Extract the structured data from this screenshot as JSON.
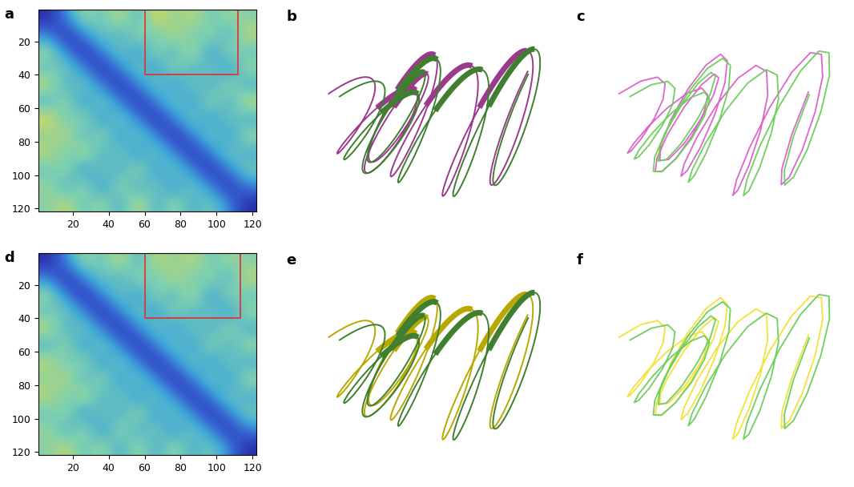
{
  "chart_data": [
    {
      "type": "heatmap",
      "title": "a",
      "xlim": [
        1,
        122
      ],
      "ylim": [
        122,
        1
      ],
      "xticks": [
        20,
        40,
        60,
        80,
        100,
        120
      ],
      "yticks": [
        20,
        40,
        60,
        80,
        100,
        120
      ],
      "clim": [
        0,
        10
      ],
      "highlight": {
        "x": [
          60,
          112
        ],
        "y": [
          1,
          40
        ],
        "color": "#e03030"
      },
      "cells": [
        [
          0,
          3,
          7,
          5,
          8,
          4,
          9,
          6,
          8,
          5,
          7,
          6
        ],
        [
          3,
          0,
          3,
          6,
          4,
          7,
          5,
          8,
          5,
          7,
          4,
          8
        ],
        [
          7,
          3,
          0,
          3,
          6,
          3,
          7,
          4,
          8,
          3,
          7,
          5
        ],
        [
          5,
          6,
          3,
          0,
          3,
          6,
          3,
          7,
          4,
          6,
          3,
          7
        ],
        [
          8,
          4,
          6,
          3,
          0,
          3,
          6,
          3,
          6,
          4,
          7,
          4
        ],
        [
          4,
          7,
          3,
          6,
          3,
          0,
          3,
          6,
          3,
          7,
          4,
          8
        ],
        [
          9,
          5,
          7,
          3,
          6,
          3,
          0,
          3,
          6,
          3,
          6,
          4
        ],
        [
          6,
          8,
          4,
          7,
          3,
          6,
          3,
          0,
          3,
          6,
          3,
          7
        ],
        [
          8,
          5,
          8,
          4,
          6,
          3,
          6,
          3,
          0,
          3,
          6,
          4
        ],
        [
          5,
          7,
          3,
          6,
          4,
          7,
          3,
          6,
          3,
          0,
          3,
          6
        ],
        [
          7,
          4,
          7,
          3,
          7,
          4,
          6,
          3,
          6,
          3,
          0,
          3
        ],
        [
          6,
          8,
          5,
          7,
          4,
          8,
          4,
          7,
          4,
          6,
          3,
          0
        ]
      ]
    },
    {
      "type": "heatmap",
      "title": "d",
      "xlim": [
        1,
        122
      ],
      "ylim": [
        122,
        1
      ],
      "xticks": [
        20,
        40,
        60,
        80,
        100,
        120
      ],
      "yticks": [
        20,
        40,
        60,
        80,
        100,
        120
      ],
      "clim": [
        0,
        10
      ],
      "highlight": {
        "x": [
          60,
          113
        ],
        "y": [
          1,
          40
        ],
        "color": "#e03030"
      },
      "cells": [
        [
          0,
          3,
          7,
          5,
          8,
          4,
          8,
          6,
          8,
          5,
          7,
          6
        ],
        [
          3,
          0,
          3,
          6,
          4,
          7,
          5,
          8,
          5,
          7,
          4,
          8
        ],
        [
          7,
          3,
          0,
          3,
          6,
          3,
          7,
          4,
          8,
          3,
          7,
          5
        ],
        [
          5,
          6,
          3,
          0,
          3,
          6,
          3,
          7,
          4,
          6,
          3,
          7
        ],
        [
          8,
          4,
          6,
          3,
          0,
          3,
          6,
          3,
          6,
          4,
          7,
          4
        ],
        [
          4,
          7,
          3,
          6,
          3,
          0,
          3,
          6,
          3,
          7,
          4,
          7
        ],
        [
          8,
          5,
          7,
          3,
          6,
          3,
          0,
          3,
          6,
          3,
          6,
          4
        ],
        [
          6,
          8,
          4,
          7,
          3,
          6,
          3,
          0,
          3,
          6,
          3,
          7
        ],
        [
          8,
          5,
          8,
          4,
          6,
          3,
          6,
          3,
          0,
          3,
          6,
          4
        ],
        [
          5,
          7,
          3,
          6,
          4,
          7,
          3,
          6,
          3,
          0,
          3,
          6
        ],
        [
          7,
          4,
          7,
          3,
          7,
          4,
          6,
          3,
          6,
          3,
          0,
          3
        ],
        [
          6,
          8,
          5,
          7,
          4,
          7,
          4,
          7,
          4,
          6,
          3,
          0
        ]
      ]
    }
  ],
  "structures": [
    {
      "title": "b",
      "type": "cartoon",
      "colors": [
        "#9b3a8c",
        "#3f7f2f"
      ]
    },
    {
      "title": "c",
      "type": "trace",
      "colors": [
        "#dd66cc",
        "#6fcf5f"
      ]
    },
    {
      "title": "e",
      "type": "cartoon",
      "colors": [
        "#b8a800",
        "#3f7f2f"
      ]
    },
    {
      "title": "f",
      "type": "trace",
      "colors": [
        "#f2e23a",
        "#6fcf5f"
      ]
    }
  ]
}
